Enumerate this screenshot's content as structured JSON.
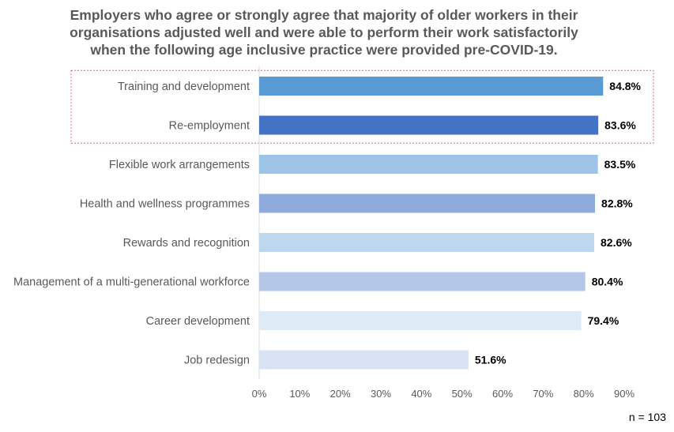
{
  "chart_data": {
    "type": "bar",
    "orientation": "horizontal",
    "title_lines": [
      "Employers who agree or strongly agree that majority of older workers in their",
      "organisations adjusted well and were able to perform their work satisfactorily",
      "when the following age inclusive practice were provided pre-COVID-19."
    ],
    "categories": [
      "Training and development",
      "Re-employment",
      "Flexible work arrangements",
      "Health and wellness programmes",
      "Rewards and recognition",
      "Management of a multi-generational workforce",
      "Career development",
      "Job redesign"
    ],
    "values": [
      84.8,
      83.6,
      83.5,
      82.8,
      82.6,
      80.4,
      79.4,
      51.6
    ],
    "value_labels": [
      "84.8%",
      "83.6%",
      "83.5%",
      "82.8%",
      "82.6%",
      "80.4%",
      "79.4%",
      "51.6%"
    ],
    "bar_colors": [
      "#5b9bd5",
      "#4472c4",
      "#9dc3e6",
      "#8faadc",
      "#bdd7ee",
      "#b4c7e7",
      "#deebf7",
      "#dae3f3"
    ],
    "xlim": [
      0,
      90
    ],
    "xticks": [
      0,
      10,
      20,
      30,
      40,
      50,
      60,
      70,
      80,
      90
    ],
    "xtick_labels": [
      "0%",
      "10%",
      "20%",
      "30%",
      "40%",
      "50%",
      "60%",
      "70%",
      "80%",
      "90%"
    ],
    "grid": false,
    "highlight": {
      "categories": [
        "Training and development",
        "Re-employment"
      ],
      "style": "dotted red box",
      "color": "#e06666"
    }
  },
  "note": "n = 103"
}
